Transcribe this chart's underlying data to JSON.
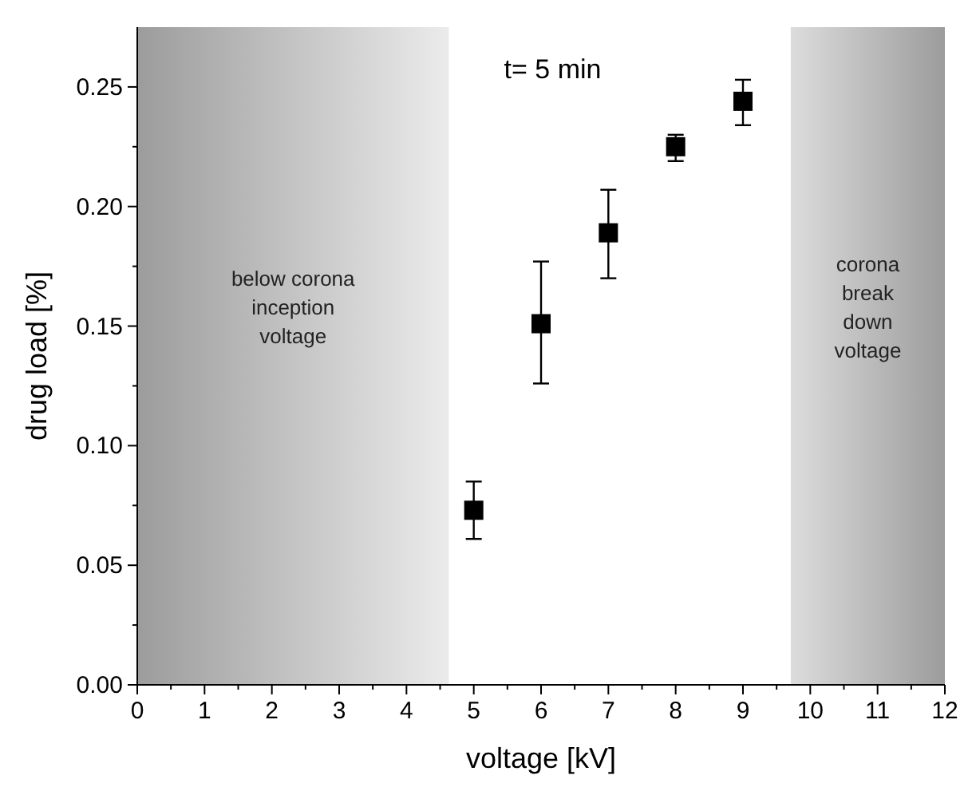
{
  "chart_data": {
    "type": "scatter",
    "xlabel": "voltage [kV]",
    "ylabel": "drug load [%]",
    "x": [
      5,
      6,
      7,
      8,
      9
    ],
    "series": [
      {
        "color": "#000000",
        "values": [
          0.073,
          0.151,
          0.189,
          0.225,
          0.244
        ],
        "errors": [
          [
            0.061,
            0.085
          ],
          [
            0.126,
            0.177
          ],
          [
            0.17,
            0.207
          ],
          [
            0.219,
            0.23
          ],
          [
            0.234,
            0.253
          ]
        ]
      }
    ],
    "marker": "square",
    "xlim": [
      0,
      12
    ],
    "ylim": [
      0,
      0.275
    ],
    "xticks": [
      0,
      {
        "value": 0.5,
        "label": null
      },
      1,
      {
        "value": 1.5,
        "label": null
      },
      2,
      {
        "value": 2.5,
        "label": null
      },
      3,
      {
        "value": 3.5,
        "label": null
      },
      4,
      {
        "value": 4.5,
        "label": null
      },
      5,
      {
        "value": 5.5,
        "label": null
      },
      6,
      {
        "value": 6.5,
        "label": null
      },
      7,
      {
        "value": 7.5,
        "label": null
      },
      8,
      {
        "value": 8.5,
        "label": null
      },
      9,
      {
        "value": 9.5,
        "label": null
      },
      10,
      {
        "value": 10.5,
        "label": null
      },
      11,
      {
        "value": 11.5,
        "label": null
      },
      12
    ],
    "yticks": [
      {
        "value": 0,
        "label": "0.00"
      },
      {
        "value": 0.025,
        "label": null
      },
      {
        "value": 0.05,
        "label": "0.05"
      },
      {
        "value": 0.075,
        "label": null
      },
      {
        "value": 0.1,
        "label": "0.10"
      },
      {
        "value": 0.125,
        "label": null
      },
      {
        "value": 0.15,
        "label": "0.15"
      },
      {
        "value": 0.175,
        "label": null
      },
      {
        "value": 0.2,
        "label": "0.20"
      },
      {
        "value": 0.225,
        "label": null
      },
      {
        "value": 0.25,
        "label": "0.25"
      }
    ],
    "bands": [
      {
        "axis": "x",
        "from": 0,
        "to": 4.63,
        "label": "below corona\ninception\nvoltage",
        "color": "#9c9c9c"
      },
      {
        "axis": "x",
        "from": 9.71,
        "to": 12,
        "label": "corona\nbreak\ndown\nvoltage",
        "color": "#9c9c9c"
      }
    ],
    "annotations": [
      "t= 5  min"
    ],
    "grid": false
  }
}
